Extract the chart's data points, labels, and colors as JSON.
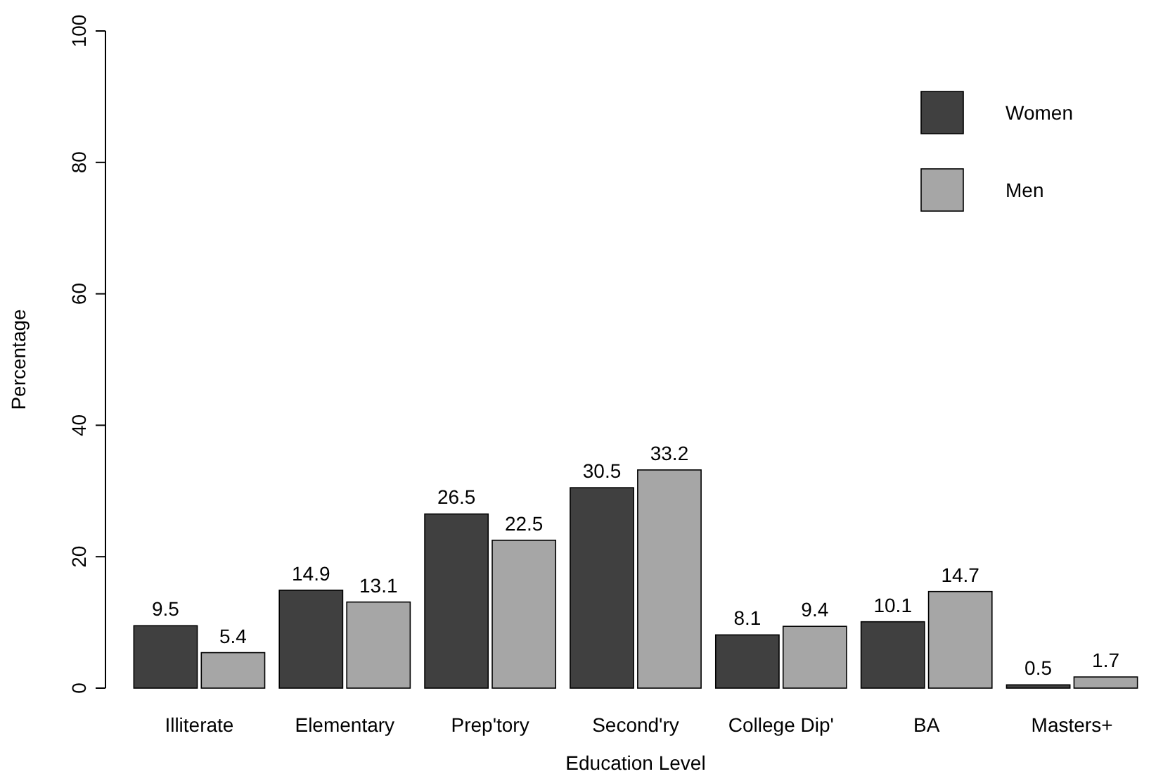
{
  "chart_data": {
    "type": "bar",
    "xlabel": "Education Level",
    "ylabel": "Percentage",
    "categories": [
      "Illiterate",
      "Elementary",
      "Prep'tory",
      "Second'ry",
      "College Dip'",
      "BA",
      "Masters+"
    ],
    "series": [
      {
        "name": "Women",
        "color": "#404040",
        "values": [
          9.5,
          14.9,
          26.5,
          30.5,
          8.1,
          10.1,
          0.5
        ]
      },
      {
        "name": "Men",
        "color": "#a6a6a6",
        "values": [
          5.4,
          13.1,
          22.5,
          33.2,
          9.4,
          14.7,
          1.7
        ]
      }
    ],
    "ylim": [
      0,
      100
    ],
    "yticks": [
      0,
      20,
      40,
      60,
      80,
      100
    ],
    "data_labels": true,
    "legend": "top right",
    "grid": false
  }
}
